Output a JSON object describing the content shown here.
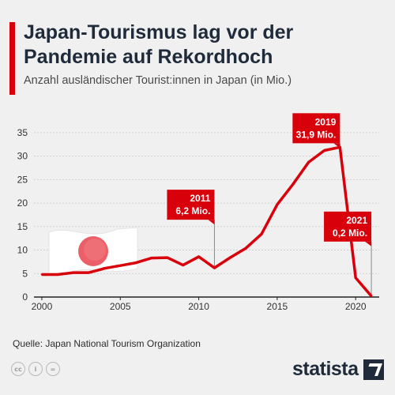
{
  "header": {
    "title": "Japan-Tourismus lag vor der Pandemie auf Rekordhoch",
    "subtitle": "Anzahl ausländischer Tourist:innen in Japan (in Mio.)"
  },
  "footer": {
    "source": "Quelle: Japan National Tourism Organization",
    "brand": "statista",
    "license_icons": [
      "cc-icon",
      "person-icon",
      "equals-icon"
    ]
  },
  "colors": {
    "line": "#d8000b",
    "callout": "#d8000b",
    "text_dark": "#1f2b3a",
    "background": "#f0f0f0"
  },
  "chart_data": {
    "type": "line",
    "title": "Japan-Tourismus lag vor der Pandemie auf Rekordhoch",
    "subtitle": "Anzahl ausländischer Tourist:innen in Japan (in Mio.)",
    "xlabel": "",
    "ylabel": "",
    "xlim": [
      1999.5,
      2021.5
    ],
    "ylim": [
      0,
      37
    ],
    "x_ticks": [
      2000,
      2005,
      2010,
      2015,
      2020
    ],
    "y_ticks": [
      0,
      5,
      10,
      15,
      20,
      25,
      30,
      35
    ],
    "grid": "horizontal",
    "series": [
      {
        "x": [
          2000,
          2001,
          2002,
          2003,
          2004,
          2005,
          2006,
          2007,
          2008,
          2009,
          2010,
          2011,
          2012,
          2013,
          2014,
          2015,
          2016,
          2017,
          2018,
          2019,
          2020,
          2021
        ],
        "values": [
          4.8,
          4.8,
          5.2,
          5.2,
          6.1,
          6.7,
          7.3,
          8.3,
          8.4,
          6.8,
          8.6,
          6.2,
          8.4,
          10.4,
          13.4,
          19.7,
          24.0,
          28.7,
          31.2,
          31.9,
          4.1,
          0.2
        ]
      }
    ],
    "annotations": [
      {
        "x": 2011,
        "y": 6.2,
        "year": "2011",
        "value": "6,2 Mio."
      },
      {
        "x": 2019,
        "y": 31.9,
        "year": "2019",
        "value": "31,9 Mio."
      },
      {
        "x": 2021,
        "y": 0.2,
        "year": "2021",
        "value": "0,2 Mio."
      }
    ],
    "flag": "japan-flag-icon"
  }
}
